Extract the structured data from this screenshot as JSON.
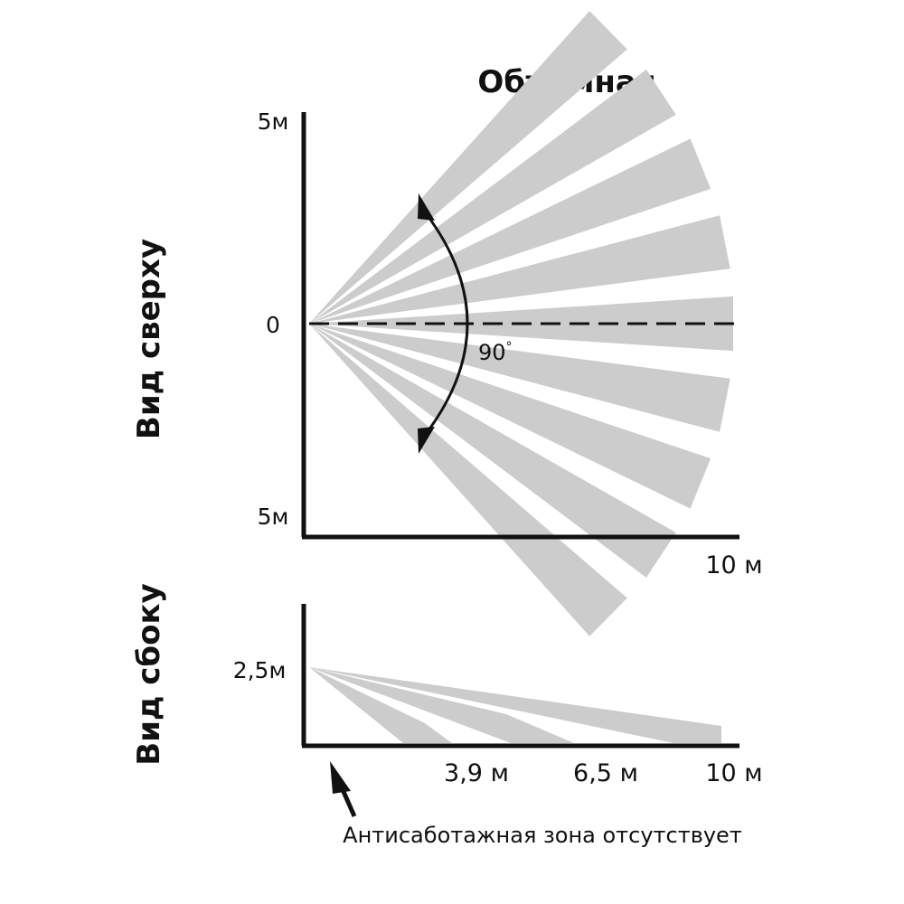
{
  "title": "Объемная",
  "top_view": {
    "label": "Вид сверху",
    "y_top_label": "5м",
    "y_mid_label": "0",
    "y_bottom_label": "5м",
    "x_end_label": "10 м",
    "angle_label": "90",
    "angle_unit": "°",
    "zones": 9
  },
  "side_view": {
    "label": "Вид сбоку",
    "height_label": "2,5м",
    "ticks": [
      "3,9 м",
      "6,5 м",
      "10 м"
    ]
  },
  "note": "Антисаботажная зона отсутствует",
  "colors": {
    "zone": "#cccccc",
    "ink": "#111111"
  }
}
